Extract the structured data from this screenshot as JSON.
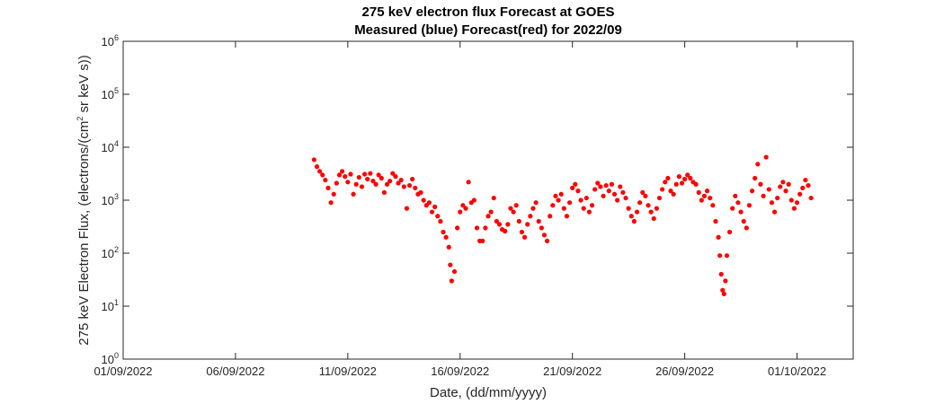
{
  "chart_data": {
    "type": "scatter",
    "title": "275 keV electron flux Forecast at GOES",
    "subtitle": "Measured (blue) Forecast(red) for 2022/09",
    "xlabel": "Date, (dd/mm/yyyy)",
    "ylabel": {
      "prefix": "275 keV Electron Flux, (electrons/(cm",
      "superscript": "2",
      "suffix": " sr keV s))"
    },
    "x_scale": "date",
    "xlim": [
      "2022-09-01",
      "2022-10-03T12:00"
    ],
    "x_ticks": [
      {
        "label": "01/09/2022",
        "date": "2022-09-01"
      },
      {
        "label": "06/09/2022",
        "date": "2022-09-06"
      },
      {
        "label": "11/09/2022",
        "date": "2022-09-11"
      },
      {
        "label": "16/09/2022",
        "date": "2022-09-16"
      },
      {
        "label": "21/09/2022",
        "date": "2022-09-21"
      },
      {
        "label": "26/09/2022",
        "date": "2022-09-26"
      },
      {
        "label": "01/10/2022",
        "date": "2022-10-01"
      }
    ],
    "y_scale": "log",
    "ylim": [
      1,
      1000000
    ],
    "y_ticks": [
      {
        "base": "10",
        "exp": "0",
        "value": 1
      },
      {
        "base": "10",
        "exp": "1",
        "value": 10
      },
      {
        "base": "10",
        "exp": "2",
        "value": 100
      },
      {
        "base": "10",
        "exp": "3",
        "value": 1000
      },
      {
        "base": "10",
        "exp": "4",
        "value": 10000
      },
      {
        "base": "10",
        "exp": "5",
        "value": 100000
      },
      {
        "base": "10",
        "exp": "6",
        "value": 1000000
      }
    ],
    "grid": false,
    "series": [
      {
        "color": "#ff0000",
        "marker": "filled-circle",
        "points": [
          [
            "2022-09-09T12:00",
            5800
          ],
          [
            "2022-09-09T15:00",
            4300
          ],
          [
            "2022-09-09T18:00",
            3500
          ],
          [
            "2022-09-09T21:00",
            3000
          ],
          [
            "2022-09-10T00:00",
            2400
          ],
          [
            "2022-09-10T03:00",
            1700
          ],
          [
            "2022-09-10T06:00",
            900
          ],
          [
            "2022-09-10T09:00",
            1300
          ],
          [
            "2022-09-10T12:00",
            2100
          ],
          [
            "2022-09-10T15:00",
            3000
          ],
          [
            "2022-09-10T18:00",
            3500
          ],
          [
            "2022-09-10T21:00",
            2800
          ],
          [
            "2022-09-11T00:00",
            2200
          ],
          [
            "2022-09-11T03:00",
            3100
          ],
          [
            "2022-09-11T06:00",
            1300
          ],
          [
            "2022-09-11T09:00",
            2000
          ],
          [
            "2022-09-11T12:00",
            2700
          ],
          [
            "2022-09-11T15:00",
            1800
          ],
          [
            "2022-09-11T18:00",
            3100
          ],
          [
            "2022-09-11T21:00",
            2500
          ],
          [
            "2022-09-12T00:00",
            3200
          ],
          [
            "2022-09-12T03:00",
            2300
          ],
          [
            "2022-09-12T06:00",
            2000
          ],
          [
            "2022-09-12T09:00",
            3000
          ],
          [
            "2022-09-12T12:00",
            2600
          ],
          [
            "2022-09-12T15:00",
            1400
          ],
          [
            "2022-09-12T18:00",
            2000
          ],
          [
            "2022-09-12T21:00",
            2300
          ],
          [
            "2022-09-13T00:00",
            3200
          ],
          [
            "2022-09-13T03:00",
            2800
          ],
          [
            "2022-09-13T06:00",
            2100
          ],
          [
            "2022-09-13T09:00",
            2400
          ],
          [
            "2022-09-13T12:00",
            1800
          ],
          [
            "2022-09-13T15:00",
            700
          ],
          [
            "2022-09-13T18:00",
            1900
          ],
          [
            "2022-09-13T21:00",
            2500
          ],
          [
            "2022-09-14T00:00",
            1700
          ],
          [
            "2022-09-14T03:00",
            1300
          ],
          [
            "2022-09-14T06:00",
            1400
          ],
          [
            "2022-09-14T09:00",
            1000
          ],
          [
            "2022-09-14T12:00",
            800
          ],
          [
            "2022-09-14T15:00",
            900
          ],
          [
            "2022-09-14T18:00",
            600
          ],
          [
            "2022-09-14T21:00",
            750
          ],
          [
            "2022-09-15T00:00",
            500
          ],
          [
            "2022-09-15T03:00",
            400
          ],
          [
            "2022-09-15T06:00",
            250
          ],
          [
            "2022-09-15T09:00",
            200
          ],
          [
            "2022-09-15T12:00",
            130
          ],
          [
            "2022-09-15T13:30",
            60
          ],
          [
            "2022-09-15T15:00",
            30
          ],
          [
            "2022-09-15T18:00",
            45
          ],
          [
            "2022-09-15T21:00",
            300
          ],
          [
            "2022-09-16T00:00",
            600
          ],
          [
            "2022-09-16T03:00",
            800
          ],
          [
            "2022-09-16T06:00",
            700
          ],
          [
            "2022-09-16T09:00",
            2200
          ],
          [
            "2022-09-16T12:00",
            900
          ],
          [
            "2022-09-16T15:00",
            1000
          ],
          [
            "2022-09-16T18:00",
            300
          ],
          [
            "2022-09-16T21:00",
            170
          ],
          [
            "2022-09-17T00:00",
            170
          ],
          [
            "2022-09-17T03:00",
            300
          ],
          [
            "2022-09-17T06:00",
            500
          ],
          [
            "2022-09-17T09:00",
            600
          ],
          [
            "2022-09-17T12:00",
            1100
          ],
          [
            "2022-09-17T15:00",
            400
          ],
          [
            "2022-09-17T18:00",
            350
          ],
          [
            "2022-09-17T21:00",
            280
          ],
          [
            "2022-09-18T00:00",
            260
          ],
          [
            "2022-09-18T03:00",
            350
          ],
          [
            "2022-09-18T06:00",
            700
          ],
          [
            "2022-09-18T09:00",
            600
          ],
          [
            "2022-09-18T12:00",
            800
          ],
          [
            "2022-09-18T15:00",
            400
          ],
          [
            "2022-09-18T18:00",
            250
          ],
          [
            "2022-09-18T21:00",
            200
          ],
          [
            "2022-09-19T00:00",
            350
          ],
          [
            "2022-09-19T03:00",
            500
          ],
          [
            "2022-09-19T06:00",
            700
          ],
          [
            "2022-09-19T09:00",
            900
          ],
          [
            "2022-09-19T12:00",
            400
          ],
          [
            "2022-09-19T15:00",
            300
          ],
          [
            "2022-09-19T18:00",
            220
          ],
          [
            "2022-09-19T21:00",
            170
          ],
          [
            "2022-09-20T00:00",
            500
          ],
          [
            "2022-09-20T03:00",
            800
          ],
          [
            "2022-09-20T06:00",
            1200
          ],
          [
            "2022-09-20T09:00",
            1000
          ],
          [
            "2022-09-20T12:00",
            1300
          ],
          [
            "2022-09-20T15:00",
            700
          ],
          [
            "2022-09-20T18:00",
            500
          ],
          [
            "2022-09-20T21:00",
            900
          ],
          [
            "2022-09-21T00:00",
            1700
          ],
          [
            "2022-09-21T03:00",
            2000
          ],
          [
            "2022-09-21T06:00",
            1500
          ],
          [
            "2022-09-21T09:00",
            1000
          ],
          [
            "2022-09-21T12:00",
            700
          ],
          [
            "2022-09-21T15:00",
            1100
          ],
          [
            "2022-09-21T18:00",
            600
          ],
          [
            "2022-09-21T21:00",
            800
          ],
          [
            "2022-09-22T00:00",
            1600
          ],
          [
            "2022-09-22T03:00",
            2100
          ],
          [
            "2022-09-22T06:00",
            1800
          ],
          [
            "2022-09-22T09:00",
            1200
          ],
          [
            "2022-09-22T12:00",
            1900
          ],
          [
            "2022-09-22T15:00",
            1500
          ],
          [
            "2022-09-22T18:00",
            2000
          ],
          [
            "2022-09-22T21:00",
            1300
          ],
          [
            "2022-09-23T00:00",
            1000
          ],
          [
            "2022-09-23T03:00",
            1800
          ],
          [
            "2022-09-23T06:00",
            1400
          ],
          [
            "2022-09-23T09:00",
            1100
          ],
          [
            "2022-09-23T12:00",
            700
          ],
          [
            "2022-09-23T15:00",
            500
          ],
          [
            "2022-09-23T18:00",
            400
          ],
          [
            "2022-09-23T21:00",
            600
          ],
          [
            "2022-09-24T00:00",
            900
          ],
          [
            "2022-09-24T03:00",
            1400
          ],
          [
            "2022-09-24T06:00",
            1200
          ],
          [
            "2022-09-24T09:00",
            800
          ],
          [
            "2022-09-24T12:00",
            600
          ],
          [
            "2022-09-24T15:00",
            450
          ],
          [
            "2022-09-24T18:00",
            700
          ],
          [
            "2022-09-24T21:00",
            1100
          ],
          [
            "2022-09-25T00:00",
            1600
          ],
          [
            "2022-09-25T03:00",
            2200
          ],
          [
            "2022-09-25T06:00",
            2600
          ],
          [
            "2022-09-25T09:00",
            1500
          ],
          [
            "2022-09-25T12:00",
            1300
          ],
          [
            "2022-09-25T15:00",
            2000
          ],
          [
            "2022-09-25T18:00",
            2800
          ],
          [
            "2022-09-25T21:00",
            2100
          ],
          [
            "2022-09-26T00:00",
            2500
          ],
          [
            "2022-09-26T03:00",
            3000
          ],
          [
            "2022-09-26T06:00",
            2600
          ],
          [
            "2022-09-26T09:00",
            2200
          ],
          [
            "2022-09-26T12:00",
            2000
          ],
          [
            "2022-09-26T15:00",
            1400
          ],
          [
            "2022-09-26T18:00",
            1000
          ],
          [
            "2022-09-26T21:00",
            1200
          ],
          [
            "2022-09-27T00:00",
            1500
          ],
          [
            "2022-09-27T03:00",
            1100
          ],
          [
            "2022-09-27T06:00",
            800
          ],
          [
            "2022-09-27T09:00",
            400
          ],
          [
            "2022-09-27T12:00",
            200
          ],
          [
            "2022-09-27T13:30",
            90
          ],
          [
            "2022-09-27T15:00",
            40
          ],
          [
            "2022-09-27T16:30",
            20
          ],
          [
            "2022-09-27T18:00",
            17
          ],
          [
            "2022-09-27T19:30",
            30
          ],
          [
            "2022-09-27T21:00",
            90
          ],
          [
            "2022-09-28T00:00",
            250
          ],
          [
            "2022-09-28T03:00",
            700
          ],
          [
            "2022-09-28T06:00",
            1200
          ],
          [
            "2022-09-28T09:00",
            900
          ],
          [
            "2022-09-28T12:00",
            600
          ],
          [
            "2022-09-28T15:00",
            400
          ],
          [
            "2022-09-28T18:00",
            300
          ],
          [
            "2022-09-28T21:00",
            800
          ],
          [
            "2022-09-29T00:00",
            1500
          ],
          [
            "2022-09-29T03:00",
            2600
          ],
          [
            "2022-09-29T06:00",
            4800
          ],
          [
            "2022-09-29T09:00",
            2000
          ],
          [
            "2022-09-29T12:00",
            1200
          ],
          [
            "2022-09-29T15:00",
            6500
          ],
          [
            "2022-09-29T18:00",
            1600
          ],
          [
            "2022-09-29T21:00",
            900
          ],
          [
            "2022-09-30T00:00",
            600
          ],
          [
            "2022-09-30T03:00",
            1100
          ],
          [
            "2022-09-30T06:00",
            1800
          ],
          [
            "2022-09-30T09:00",
            2200
          ],
          [
            "2022-09-30T12:00",
            1500
          ],
          [
            "2022-09-30T15:00",
            2000
          ],
          [
            "2022-09-30T18:00",
            1000
          ],
          [
            "2022-09-30T21:00",
            700
          ],
          [
            "2022-10-01T00:00",
            900
          ],
          [
            "2022-10-01T03:00",
            1300
          ],
          [
            "2022-10-01T06:00",
            1700
          ],
          [
            "2022-10-01T09:00",
            2400
          ],
          [
            "2022-10-01T12:00",
            1900
          ],
          [
            "2022-10-01T15:00",
            1100
          ]
        ]
      }
    ]
  }
}
